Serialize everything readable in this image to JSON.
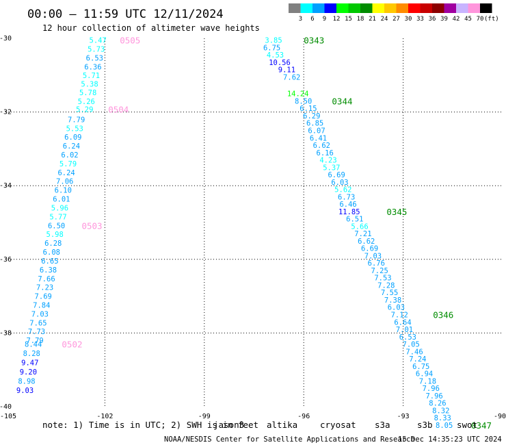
{
  "header": {
    "title": "00:00 – 11:59 UTC 12/11/2024",
    "subtitle": "12 hour collection of altimeter wave heights"
  },
  "legend": {
    "unit": "(ft)",
    "bins": [
      {
        "label": "3",
        "color": "#808080"
      },
      {
        "label": "6",
        "color": "#00ffff"
      },
      {
        "label": "9",
        "color": "#00a0ff"
      },
      {
        "label": "12",
        "color": "#0000ff"
      },
      {
        "label": "15",
        "color": "#00ff00"
      },
      {
        "label": "18",
        "color": "#00c800"
      },
      {
        "label": "21",
        "color": "#008c00"
      },
      {
        "label": "24",
        "color": "#ffff00"
      },
      {
        "label": "27",
        "color": "#ffc800"
      },
      {
        "label": "30",
        "color": "#ff8c00"
      },
      {
        "label": "33",
        "color": "#ff0000"
      },
      {
        "label": "36",
        "color": "#c80000"
      },
      {
        "label": "39",
        "color": "#8c0000"
      },
      {
        "label": "42",
        "color": "#a000a0"
      },
      {
        "label": "45",
        "color": "#c8b4ff"
      },
      {
        "label": "70",
        "color": "#ff96dc"
      },
      {
        "label": "",
        "color": "#000000"
      }
    ]
  },
  "chart_data": {
    "type": "scatter",
    "xlim": [
      -105,
      -90
    ],
    "ylim": [
      -40,
      -30
    ],
    "x_ticks": [
      -105,
      -102,
      -99,
      -96,
      -93,
      -90
    ],
    "y_ticks": [
      -30,
      -32,
      -34,
      -36,
      -38,
      -40
    ],
    "grid": true,
    "series": [
      {
        "points": [
          {
            "x": -101.95,
            "y": -30.05,
            "v": "5.47"
          },
          {
            "x": -102.0,
            "y": -30.29,
            "v": "5.73"
          },
          {
            "x": -102.05,
            "y": -30.53,
            "v": "6.53"
          },
          {
            "x": -102.1,
            "y": -30.77,
            "v": "6.36"
          },
          {
            "x": -102.15,
            "y": -31.0,
            "v": "5.71"
          },
          {
            "x": -102.2,
            "y": -31.24,
            "v": "5.38"
          },
          {
            "x": -102.25,
            "y": -31.47,
            "v": "5.78"
          },
          {
            "x": -102.3,
            "y": -31.71,
            "v": "5.26"
          },
          {
            "x": -102.35,
            "y": -31.92,
            "v": "5.29"
          },
          {
            "x": -102.6,
            "y": -32.2,
            "v": "7.79"
          },
          {
            "x": -102.65,
            "y": -32.44,
            "v": "5.53"
          },
          {
            "x": -102.7,
            "y": -32.68,
            "v": "6.09"
          },
          {
            "x": -102.75,
            "y": -32.92,
            "v": "6.24"
          },
          {
            "x": -102.8,
            "y": -33.16,
            "v": "6.02"
          },
          {
            "x": -102.85,
            "y": -33.4,
            "v": "5.79"
          },
          {
            "x": -102.9,
            "y": -33.64,
            "v": "6.24"
          },
          {
            "x": -102.95,
            "y": -33.88,
            "v": "7.06"
          },
          {
            "x": -103.0,
            "y": -34.12,
            "v": "6.10"
          },
          {
            "x": -103.05,
            "y": -34.36,
            "v": "6.01"
          },
          {
            "x": -103.1,
            "y": -34.6,
            "v": "5.96"
          },
          {
            "x": -103.15,
            "y": -34.84,
            "v": "5.77"
          },
          {
            "x": -103.2,
            "y": -35.08,
            "v": "6.50"
          },
          {
            "x": -103.25,
            "y": -35.32,
            "v": "5.98"
          },
          {
            "x": -103.3,
            "y": -35.56,
            "v": "6.28"
          },
          {
            "x": -103.35,
            "y": -35.8,
            "v": "6.08"
          },
          {
            "x": -103.4,
            "y": -36.04,
            "v": "6.65"
          },
          {
            "x": -103.45,
            "y": -36.28,
            "v": "6.38"
          },
          {
            "x": -103.5,
            "y": -36.52,
            "v": "7.66"
          },
          {
            "x": -103.55,
            "y": -36.76,
            "v": "7.23"
          },
          {
            "x": -103.6,
            "y": -37.0,
            "v": "7.69"
          },
          {
            "x": -103.65,
            "y": -37.24,
            "v": "7.84"
          },
          {
            "x": -103.7,
            "y": -37.48,
            "v": "7.03"
          },
          {
            "x": -103.75,
            "y": -37.72,
            "v": "7.65"
          },
          {
            "x": -103.8,
            "y": -37.96,
            "v": "7.73"
          },
          {
            "x": -103.85,
            "y": -38.2,
            "v": "7.79"
          },
          {
            "x": -103.9,
            "y": -38.3,
            "v": "8.44"
          },
          {
            "x": -103.95,
            "y": -38.55,
            "v": "8.28"
          },
          {
            "x": -104.0,
            "y": -38.8,
            "v": "9.47"
          },
          {
            "x": -104.05,
            "y": -39.05,
            "v": "9.20"
          },
          {
            "x": -104.1,
            "y": -39.3,
            "v": "8.98"
          },
          {
            "x": -104.15,
            "y": -39.55,
            "v": "9.03"
          },
          {
            "x": -96.65,
            "y": -30.05,
            "v": "3.85"
          },
          {
            "x": -96.7,
            "y": -30.25,
            "v": "6.75"
          },
          {
            "x": -96.6,
            "y": -30.45,
            "v": "4.53"
          },
          {
            "x": -96.4,
            "y": -30.65,
            "v": "10.56"
          },
          {
            "x": -96.25,
            "y": -30.85,
            "v": "9.11"
          },
          {
            "x": -96.1,
            "y": -31.05,
            "v": "7.62"
          },
          {
            "x": -95.85,
            "y": -31.5,
            "v": "14.24"
          },
          {
            "x": -95.75,
            "y": -31.7,
            "v": "8.50"
          },
          {
            "x": -95.6,
            "y": -31.9,
            "v": "6.15"
          },
          {
            "x": -95.5,
            "y": -32.1,
            "v": "6.29"
          },
          {
            "x": -95.4,
            "y": -32.3,
            "v": "6.85"
          },
          {
            "x": -95.35,
            "y": -32.5,
            "v": "6.07"
          },
          {
            "x": -95.3,
            "y": -32.7,
            "v": "6.41"
          },
          {
            "x": -95.2,
            "y": -32.9,
            "v": "6.62"
          },
          {
            "x": -95.1,
            "y": -33.1,
            "v": "6.16"
          },
          {
            "x": -95.0,
            "y": -33.3,
            "v": "4.23"
          },
          {
            "x": -94.9,
            "y": -33.5,
            "v": "5.37"
          },
          {
            "x": -94.75,
            "y": -33.7,
            "v": "6.69"
          },
          {
            "x": -94.65,
            "y": -33.9,
            "v": "6.03"
          },
          {
            "x": -94.55,
            "y": -34.1,
            "v": "5.62"
          },
          {
            "x": -94.45,
            "y": -34.3,
            "v": "6.73"
          },
          {
            "x": -94.4,
            "y": -34.5,
            "v": "6.46"
          },
          {
            "x": -94.3,
            "y": -34.7,
            "v": "11.85"
          },
          {
            "x": -94.2,
            "y": -34.9,
            "v": "6.51"
          },
          {
            "x": -94.05,
            "y": -35.1,
            "v": "5.66"
          },
          {
            "x": -93.95,
            "y": -35.3,
            "v": "7.21"
          },
          {
            "x": -93.85,
            "y": -35.5,
            "v": "6.62"
          },
          {
            "x": -93.75,
            "y": -35.7,
            "v": "6.69"
          },
          {
            "x": -93.65,
            "y": -35.9,
            "v": "7.03"
          },
          {
            "x": -93.55,
            "y": -36.1,
            "v": "6.76"
          },
          {
            "x": -93.45,
            "y": -36.3,
            "v": "7.25"
          },
          {
            "x": -93.35,
            "y": -36.5,
            "v": "7.53"
          },
          {
            "x": -93.25,
            "y": -36.7,
            "v": "7.28"
          },
          {
            "x": -93.15,
            "y": -36.9,
            "v": "7.55"
          },
          {
            "x": -93.05,
            "y": -37.1,
            "v": "7.38"
          },
          {
            "x": -92.95,
            "y": -37.3,
            "v": "6.03"
          },
          {
            "x": -92.85,
            "y": -37.5,
            "v": "7.12"
          },
          {
            "x": -92.75,
            "y": -37.7,
            "v": "6.64"
          },
          {
            "x": -92.7,
            "y": -37.9,
            "v": "7.01"
          },
          {
            "x": -92.6,
            "y": -38.1,
            "v": "6.53"
          },
          {
            "x": -92.5,
            "y": -38.3,
            "v": "7.05"
          },
          {
            "x": -92.4,
            "y": -38.5,
            "v": "7.46"
          },
          {
            "x": -92.3,
            "y": -38.7,
            "v": "7.24"
          },
          {
            "x": -92.2,
            "y": -38.9,
            "v": "6.75"
          },
          {
            "x": -92.1,
            "y": -39.1,
            "v": "6.94"
          },
          {
            "x": -92.0,
            "y": -39.3,
            "v": "7.18"
          },
          {
            "x": -91.9,
            "y": -39.5,
            "v": "7.96"
          },
          {
            "x": -91.8,
            "y": -39.7,
            "v": "7.96"
          },
          {
            "x": -91.7,
            "y": -39.9,
            "v": "8.26"
          },
          {
            "x": -91.6,
            "y": -40.1,
            "v": "8.32"
          },
          {
            "x": -91.55,
            "y": -40.3,
            "v": "8.33"
          },
          {
            "x": -91.5,
            "y": -40.5,
            "v": "8.05"
          }
        ]
      }
    ],
    "pass_labels": [
      {
        "text": "0505",
        "x": -101.55,
        "y": -30.05,
        "color": "#ff96dc"
      },
      {
        "text": "0504",
        "x": -101.9,
        "y": -31.92,
        "color": "#ff96dc"
      },
      {
        "text": "0503",
        "x": -102.7,
        "y": -35.08,
        "color": "#ff96dc"
      },
      {
        "text": "0502",
        "x": -103.3,
        "y": -38.3,
        "color": "#ff96dc"
      },
      {
        "text": "0343",
        "x": -96.0,
        "y": -30.05,
        "color": "#008c00"
      },
      {
        "text": "0344",
        "x": -95.15,
        "y": -31.7,
        "color": "#008c00"
      },
      {
        "text": "0345",
        "x": -93.5,
        "y": -34.7,
        "color": "#008c00"
      },
      {
        "text": "0346",
        "x": -92.1,
        "y": -37.5,
        "color": "#008c00"
      },
      {
        "text": "0347",
        "x": -90.95,
        "y": -40.5,
        "color": "#008c00"
      }
    ]
  },
  "note": {
    "text": "note: 1) Time is in UTC; 2) SWH is in feet",
    "satellites": [
      {
        "label": "jason3",
        "color": "#008c00"
      },
      {
        "label": "altika",
        "color": "#ff8c00"
      },
      {
        "label": "cryosat",
        "color": "#ff0000"
      },
      {
        "label": "s3a",
        "color": "#8c0000"
      },
      {
        "label": "s3b",
        "color": "#c8b4ff"
      },
      {
        "label": "swot",
        "color": "#ff96dc"
      }
    ]
  },
  "footer": {
    "credit": "NOAA/NESDIS Center for Satellite Applications and Research",
    "timestamp": "15 Dec 14:35:23 UTC 2024"
  }
}
